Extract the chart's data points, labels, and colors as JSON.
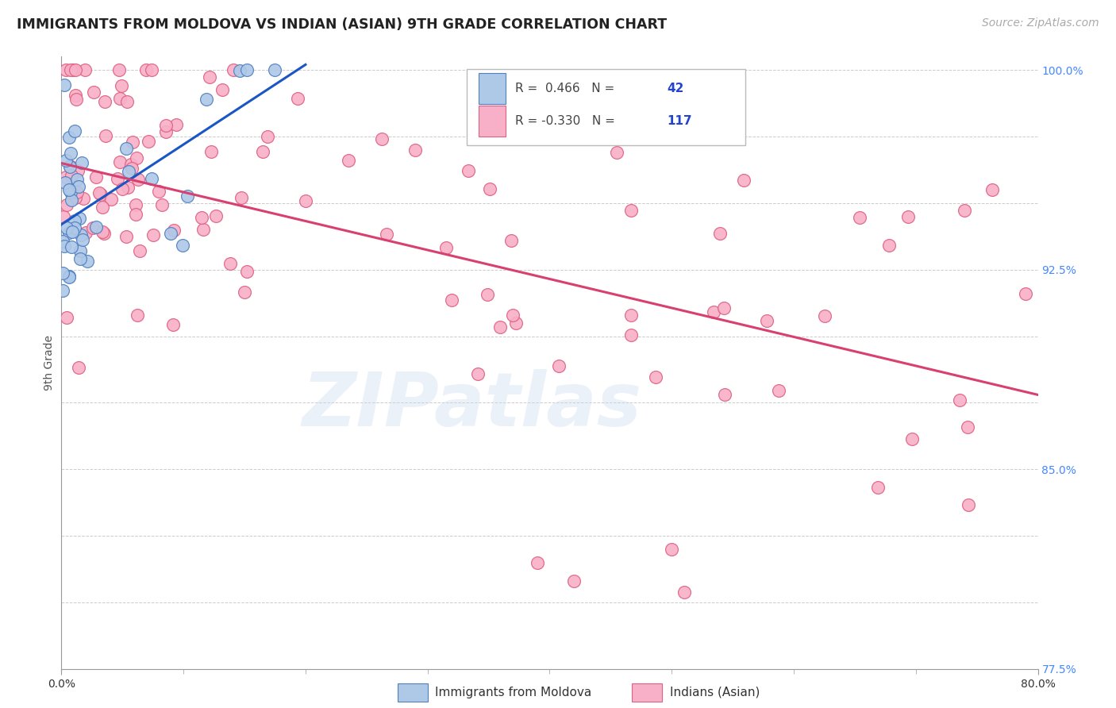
{
  "title": "IMMIGRANTS FROM MOLDOVA VS INDIAN (ASIAN) 9TH GRADE CORRELATION CHART",
  "source_text": "Source: ZipAtlas.com",
  "ylabel_text": "9th Grade",
  "watermark": "ZIPatlas",
  "legend_r1": "R =  0.466",
  "legend_n1": "N = 42",
  "legend_r2": "R = -0.330",
  "legend_n2": "N = 117",
  "blue_face": "#aec8e8",
  "blue_edge": "#5080c0",
  "pink_face": "#f8b0c8",
  "pink_edge": "#e06080",
  "trend_blue": "#1a56c4",
  "trend_pink": "#d84070",
  "grid_color": "#cccccc",
  "background_color": "#ffffff",
  "title_fontsize": 12.5,
  "axis_label_fontsize": 10,
  "tick_fontsize": 10,
  "source_fontsize": 10,
  "right_tick_color": "#4488ff",
  "xmin": 0.0,
  "xmax": 0.8,
  "ymin": 0.775,
  "ymax": 1.005,
  "blue_trend_x": [
    0.0,
    0.2
  ],
  "blue_trend_y": [
    0.942,
    1.002
  ],
  "pink_trend_x": [
    0.0,
    0.8
  ],
  "pink_trend_y": [
    0.965,
    0.878
  ]
}
